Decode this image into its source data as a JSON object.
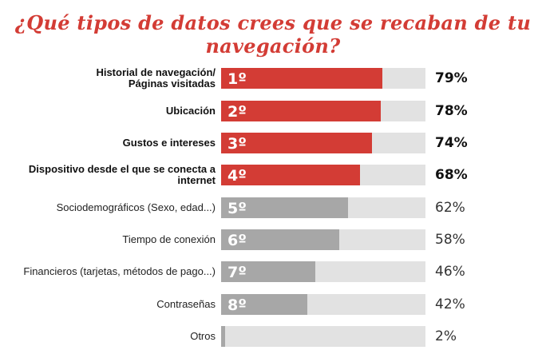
{
  "title": "¿Qué tipos de datos crees que se recaban de tu navegación?",
  "colors": {
    "highlight": "#d33c35",
    "muted": "#a7a7a7",
    "track": "#e2e2e2"
  },
  "chart_data": {
    "type": "bar",
    "orientation": "horizontal",
    "title": "¿Qué tipos de datos crees que se recaban de tu navegación?",
    "xlim": [
      0,
      100
    ],
    "grid": false,
    "categories": [
      "Historial de navegación/\nPáginas visitadas",
      "Ubicación",
      "Gustos e intereses",
      "Dispositivo desde el que se conecta a internet",
      "Sociodemográficos (Sexo, edad...)",
      "Tiempo de conexión",
      "Financieros (tarjetas, métodos de pago...)",
      "Contraseñas",
      "Otros"
    ],
    "values": [
      79,
      78,
      74,
      68,
      62,
      58,
      46,
      42,
      2
    ],
    "value_labels": [
      "79%",
      "78%",
      "74%",
      "68%",
      "62%",
      "58%",
      "46%",
      "42%",
      "2%"
    ],
    "ranks": [
      "1º",
      "2º",
      "3º",
      "4º",
      "5º",
      "6º",
      "7º",
      "8º",
      ""
    ],
    "highlighted": [
      true,
      true,
      true,
      true,
      false,
      false,
      false,
      false,
      false
    ]
  }
}
